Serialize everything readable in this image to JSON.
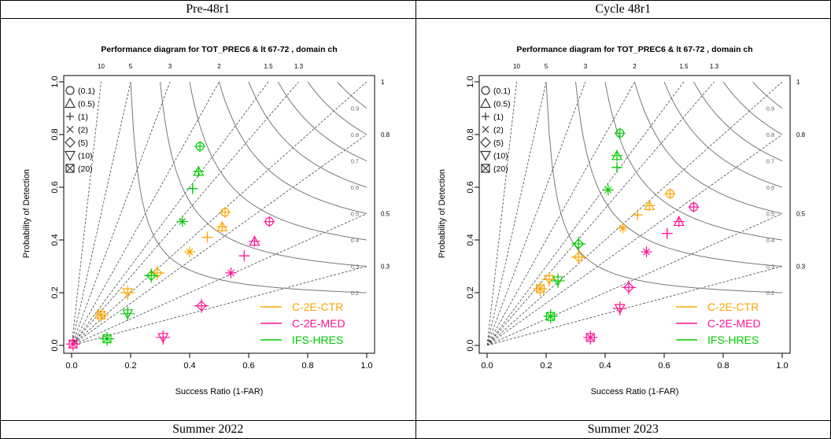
{
  "panels": [
    {
      "header": "Pre-48r1",
      "footer": "Summer 2022",
      "chart_data": {
        "type": "scatter",
        "title": "Performance diagram for TOT_PREC6 & lt 67-72 , domain ch",
        "xlabel": "Success Ratio (1-FAR)",
        "ylabel": "Probability of Detection",
        "xlim": [
          0,
          1
        ],
        "ylim": [
          0,
          1
        ],
        "x_ticks": [
          "0.0",
          "0.2",
          "0.4",
          "0.6",
          "0.8",
          "1.0"
        ],
        "y_ticks": [
          "0.0",
          "0.2",
          "0.4",
          "0.6",
          "0.8",
          "1.0"
        ],
        "bias_top_labels": [
          "10",
          "5",
          "3",
          "2",
          "1.5",
          "1.3"
        ],
        "bias_right_labels": [
          "1",
          "0.8",
          "0.5",
          "0.3"
        ],
        "csi_labels": [
          "0.9",
          "0.8",
          "0.7",
          "0.6",
          "0.5",
          "0.4",
          "0.3",
          "0.2"
        ],
        "threshold_legend": [
          "(0.1)",
          "(0.5)",
          "(1)",
          "(2)",
          "(5)",
          "(10)",
          "(20)"
        ],
        "series": [
          {
            "name": "C-2E-CTR",
            "color": "#ffa500",
            "points": [
              {
                "threshold": "(0.1)",
                "x": 0.52,
                "y": 0.505
              },
              {
                "threshold": "(0.5)",
                "x": 0.51,
                "y": 0.45
              },
              {
                "threshold": "(1)",
                "x": 0.46,
                "y": 0.41
              },
              {
                "threshold": "(2)",
                "x": 0.4,
                "y": 0.355
              },
              {
                "threshold": "(5)",
                "x": 0.29,
                "y": 0.275
              },
              {
                "threshold": "(10)",
                "x": 0.19,
                "y": 0.2
              },
              {
                "threshold": "(20)",
                "x": 0.1,
                "y": 0.115
              }
            ]
          },
          {
            "name": "C-2E-MED",
            "color": "#ff1493",
            "points": [
              {
                "threshold": "(0.1)",
                "x": 0.67,
                "y": 0.47
              },
              {
                "threshold": "(0.5)",
                "x": 0.62,
                "y": 0.395
              },
              {
                "threshold": "(1)",
                "x": 0.585,
                "y": 0.34
              },
              {
                "threshold": "(2)",
                "x": 0.54,
                "y": 0.275
              },
              {
                "threshold": "(5)",
                "x": 0.44,
                "y": 0.15
              },
              {
                "threshold": "(10)",
                "x": 0.31,
                "y": 0.03
              },
              {
                "threshold": "(20)",
                "x": 0.005,
                "y": 0.005
              }
            ]
          },
          {
            "name": "IFS-HRES",
            "color": "#00cc00",
            "points": [
              {
                "threshold": "(0.1)",
                "x": 0.435,
                "y": 0.755
              },
              {
                "threshold": "(0.5)",
                "x": 0.43,
                "y": 0.66
              },
              {
                "threshold": "(1)",
                "x": 0.41,
                "y": 0.595
              },
              {
                "threshold": "(2)",
                "x": 0.375,
                "y": 0.47
              },
              {
                "threshold": "(5)",
                "x": 0.27,
                "y": 0.265
              },
              {
                "threshold": "(10)",
                "x": 0.19,
                "y": 0.12
              },
              {
                "threshold": "(20)",
                "x": 0.12,
                "y": 0.025
              }
            ]
          }
        ]
      }
    },
    {
      "header": "Cycle 48r1",
      "footer": "Summer 2023",
      "chart_data": {
        "type": "scatter",
        "title": "Performance diagram for TOT_PREC6 & lt 67-72 , domain ch",
        "xlabel": "Success Ratio (1-FAR)",
        "ylabel": "Probability of Detection",
        "xlim": [
          0,
          1
        ],
        "ylim": [
          0,
          1
        ],
        "x_ticks": [
          "0.0",
          "0.2",
          "0.4",
          "0.6",
          "0.8",
          "1.0"
        ],
        "y_ticks": [
          "0.0",
          "0.2",
          "0.4",
          "0.6",
          "0.8",
          "1.0"
        ],
        "bias_top_labels": [
          "10",
          "5",
          "3",
          "2",
          "1.5",
          "1.3"
        ],
        "bias_right_labels": [
          "1",
          "0.8",
          "0.5",
          "0.3"
        ],
        "csi_labels": [
          "0.9",
          "0.8",
          "0.7",
          "0.6",
          "0.5",
          "0.4",
          "0.3",
          "0.2"
        ],
        "threshold_legend": [
          "(0.1)",
          "(0.5)",
          "(1)",
          "(2)",
          "(5)",
          "(10)",
          "(20)"
        ],
        "series": [
          {
            "name": "C-2E-CTR",
            "color": "#ffa500",
            "points": [
              {
                "threshold": "(0.1)",
                "x": 0.62,
                "y": 0.575
              },
              {
                "threshold": "(0.5)",
                "x": 0.55,
                "y": 0.53
              },
              {
                "threshold": "(1)",
                "x": 0.51,
                "y": 0.495
              },
              {
                "threshold": "(2)",
                "x": 0.46,
                "y": 0.445
              },
              {
                "threshold": "(5)",
                "x": 0.31,
                "y": 0.335
              },
              {
                "threshold": "(10)",
                "x": 0.21,
                "y": 0.25
              },
              {
                "threshold": "(20)",
                "x": 0.18,
                "y": 0.215
              }
            ]
          },
          {
            "name": "C-2E-MED",
            "color": "#ff1493",
            "points": [
              {
                "threshold": "(0.1)",
                "x": 0.7,
                "y": 0.525
              },
              {
                "threshold": "(0.5)",
                "x": 0.65,
                "y": 0.47
              },
              {
                "threshold": "(1)",
                "x": 0.61,
                "y": 0.425
              },
              {
                "threshold": "(2)",
                "x": 0.54,
                "y": 0.355
              },
              {
                "threshold": "(5)",
                "x": 0.48,
                "y": 0.22
              },
              {
                "threshold": "(10)",
                "x": 0.45,
                "y": 0.14
              },
              {
                "threshold": "(20)",
                "x": 0.35,
                "y": 0.03
              }
            ]
          },
          {
            "name": "IFS-HRES",
            "color": "#00cc00",
            "points": [
              {
                "threshold": "(0.1)",
                "x": 0.45,
                "y": 0.805
              },
              {
                "threshold": "(0.5)",
                "x": 0.44,
                "y": 0.72
              },
              {
                "threshold": "(1)",
                "x": 0.44,
                "y": 0.675
              },
              {
                "threshold": "(2)",
                "x": 0.41,
                "y": 0.59
              },
              {
                "threshold": "(5)",
                "x": 0.31,
                "y": 0.385
              },
              {
                "threshold": "(10)",
                "x": 0.24,
                "y": 0.245
              },
              {
                "threshold": "(20)",
                "x": 0.215,
                "y": 0.11
              }
            ]
          }
        ]
      }
    }
  ]
}
